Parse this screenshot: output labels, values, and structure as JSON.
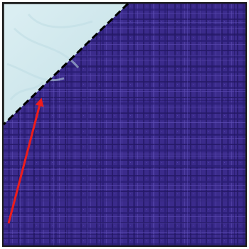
{
  "figure": {
    "fabric": {
      "pattern": "plaid",
      "base_color": "#3b2b8c",
      "dark_line_color": "#241866",
      "light_line_color": "#5a49b0"
    },
    "folded_square": {
      "color": "#d4ecf0",
      "streak_color": "#bfdde4"
    },
    "fold_line": {
      "style": "dashed",
      "color": "#000000"
    },
    "arrow": {
      "color": "#ee1c1c",
      "direction": "toward-fold-line"
    },
    "border_color": "#1a1a1a"
  }
}
